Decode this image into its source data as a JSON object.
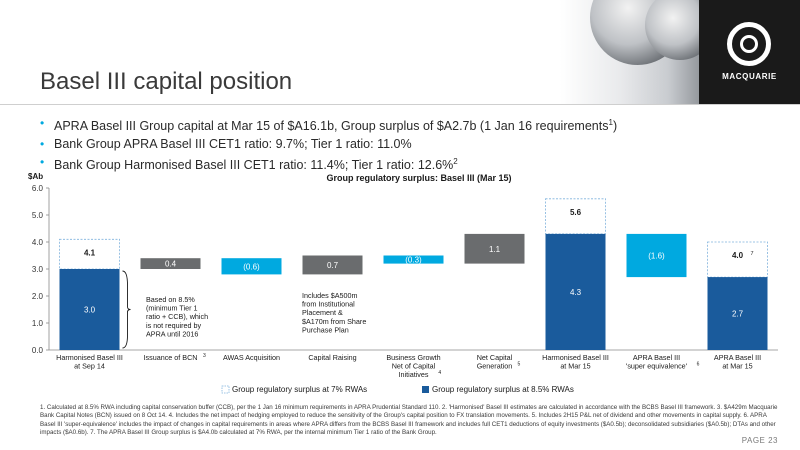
{
  "slide": {
    "title": "Basel III capital position",
    "logo_text": "MACQUARIE",
    "page_label": "PAGE 23"
  },
  "bullets": [
    {
      "text": "APRA Basel III Group capital at Mar 15 of $A16.1b, Group surplus of $A2.7b (1 Jan 16 requirements",
      "sup": "1",
      "tail": ")"
    },
    {
      "text": "Bank Group APRA Basel III CET1 ratio: 9.7%; Tier 1 ratio: 11.0%",
      "sup": "",
      "tail": ""
    },
    {
      "text": "Bank Group Harmonised Basel III CET1 ratio: 11.4%; Tier 1 ratio: 12.6%",
      "sup": "2",
      "tail": ""
    }
  ],
  "colors": {
    "dark_navy": "#1a5b9c",
    "light_blue": "#00a9e0",
    "grey": "#6a6c6e",
    "dashed_outline": "#7fb2dd"
  },
  "chart_data": {
    "type": "bar",
    "subtype": "waterfall",
    "title": "Group regulatory surplus: Basel III (Mar 15)",
    "ylabel": "$Ab",
    "ylim": [
      0,
      6
    ],
    "yticks": [
      "0.0",
      "1.0",
      "2.0",
      "3.0",
      "4.0",
      "5.0",
      "6.0"
    ],
    "grid": false,
    "legend_position": "bottom",
    "legend": [
      {
        "label": "Group regulatory surplus at 7% RWAs",
        "style": "dashed"
      },
      {
        "label": "Group regulatory surplus at 8.5% RWAs",
        "style": "solid"
      }
    ],
    "categories": [
      {
        "lines": [
          "Harmonised Basel III",
          "at Sep 14"
        ],
        "sup": ""
      },
      {
        "lines": [
          "Issuance of BCN"
        ],
        "sup": "3"
      },
      {
        "lines": [
          "AWAS Acquisition"
        ],
        "sup": ""
      },
      {
        "lines": [
          "Capital Raising"
        ],
        "sup": ""
      },
      {
        "lines": [
          "Business Growth",
          "Net of Capital",
          "Initiatives"
        ],
        "sup": "4"
      },
      {
        "lines": [
          "Net Capital",
          "Generation"
        ],
        "sup": "5"
      },
      {
        "lines": [
          "Harmonised Basel III",
          "at Mar 15"
        ],
        "sup": ""
      },
      {
        "lines": [
          "APRA Basel III",
          "'super equivalence'"
        ],
        "sup": "6"
      },
      {
        "lines": [
          "APRA Basel III",
          "at Mar 15"
        ],
        "sup": ""
      }
    ],
    "bars": [
      {
        "kind": "total",
        "solid": 3.0,
        "solid_label": "3.0",
        "dashed": 4.1,
        "dashed_label": "4.1",
        "label_sup": ""
      },
      {
        "kind": "step",
        "start": 3.0,
        "end": 3.4,
        "color": "grey",
        "label": "0.4"
      },
      {
        "kind": "step",
        "start": 3.4,
        "end": 2.8,
        "color": "light_blue",
        "label": "(0.6)"
      },
      {
        "kind": "step",
        "start": 2.8,
        "end": 3.5,
        "color": "grey",
        "label": "0.7"
      },
      {
        "kind": "step",
        "start": 3.5,
        "end": 3.2,
        "color": "light_blue",
        "label": "(0.3)"
      },
      {
        "kind": "step",
        "start": 3.2,
        "end": 4.3,
        "color": "grey",
        "label": "1.1"
      },
      {
        "kind": "total",
        "solid": 4.3,
        "solid_label": "4.3",
        "dashed": 5.6,
        "dashed_label": "5.6",
        "label_sup": ""
      },
      {
        "kind": "step",
        "start": 4.3,
        "end": 2.7,
        "color": "light_blue",
        "label": "(1.6)"
      },
      {
        "kind": "total",
        "solid": 2.7,
        "solid_label": "2.7",
        "dashed": 4.0,
        "dashed_label": "4.0",
        "label_sup": "7"
      }
    ],
    "annotations": [
      {
        "lines": [
          "Based on 8.5%",
          "(minimum Tier 1",
          "ratio + CCB), which",
          "is not required by",
          "APRA until 2016"
        ]
      },
      {
        "lines": [
          "Includes $A500m",
          "from Institutional",
          "Placement &",
          "$A170m from Share",
          "Purchase Plan"
        ]
      }
    ]
  },
  "footnotes": "1. Calculated at 8.5% RWA including capital conservation buffer (CCB), per the 1 Jan 16 minimum requirements in APRA Prudential Standard 110.  2. 'Harmonised' Basel III estimates are calculated in accordance with the BCBS Basel III framework.  3. $A429m Macquarie Bank Capital Notes (BCN) issued on 8 Oct 14.  4. Includes the net impact of hedging employed to reduce the sensitivity of the Group's capital position to FX translation movements.  5. Includes 2H15 P&L net of dividend and other movements in capital supply.  6. APRA Basel III 'super-equivalence' includes the impact of changes in capital requirements in areas where APRA differs from the BCBS Basel III framework and includes full CET1 deductions of equity investments ($A0.5b); deconsolidated subsidiaries ($A0.5b); DTAs and other impacts ($A0.6b).  7. The APRA Basel III Group surplus is $A4.0b calculated at 7% RWA, per the internal minimum Tier 1 ratio of the Bank Group."
}
